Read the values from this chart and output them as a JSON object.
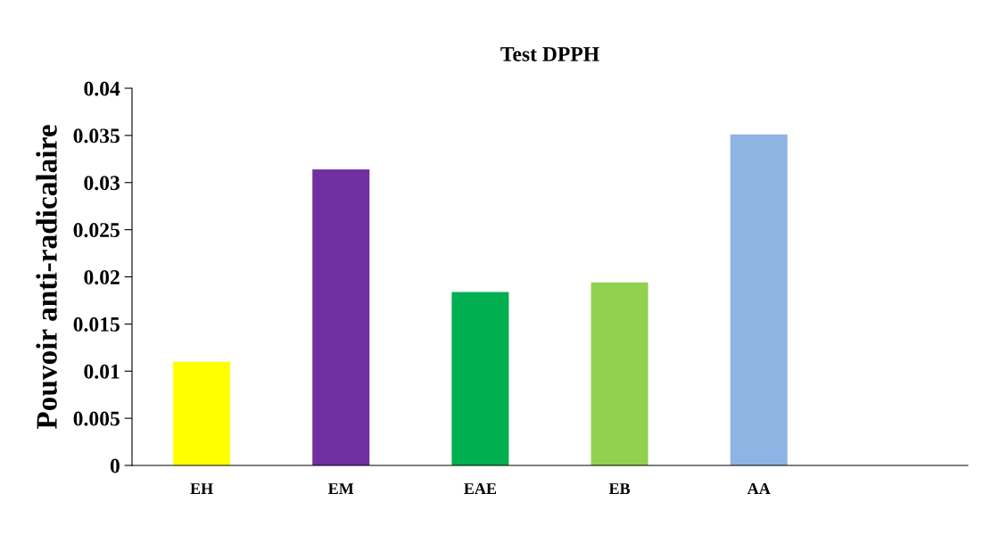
{
  "chart_data": {
    "type": "bar",
    "title": "Test DPPH",
    "ylabel": "Pouvoir anti-radicalaire",
    "categories": [
      "EH",
      "EM",
      "EAE",
      "EB",
      "AA",
      null
    ],
    "values": [
      0.011,
      0.0314,
      0.0184,
      0.0194,
      0.0351,
      null
    ],
    "colors": [
      "#ffff00",
      "#7030a0",
      "#00b050",
      "#92d050",
      "#8eb4e3",
      "#ffffff"
    ],
    "ylim": [
      0,
      0.04
    ],
    "yticks": [
      0,
      0.005,
      0.01,
      0.015,
      0.02,
      0.025,
      0.03,
      0.035,
      0.04
    ],
    "grid": false,
    "legend": false
  }
}
